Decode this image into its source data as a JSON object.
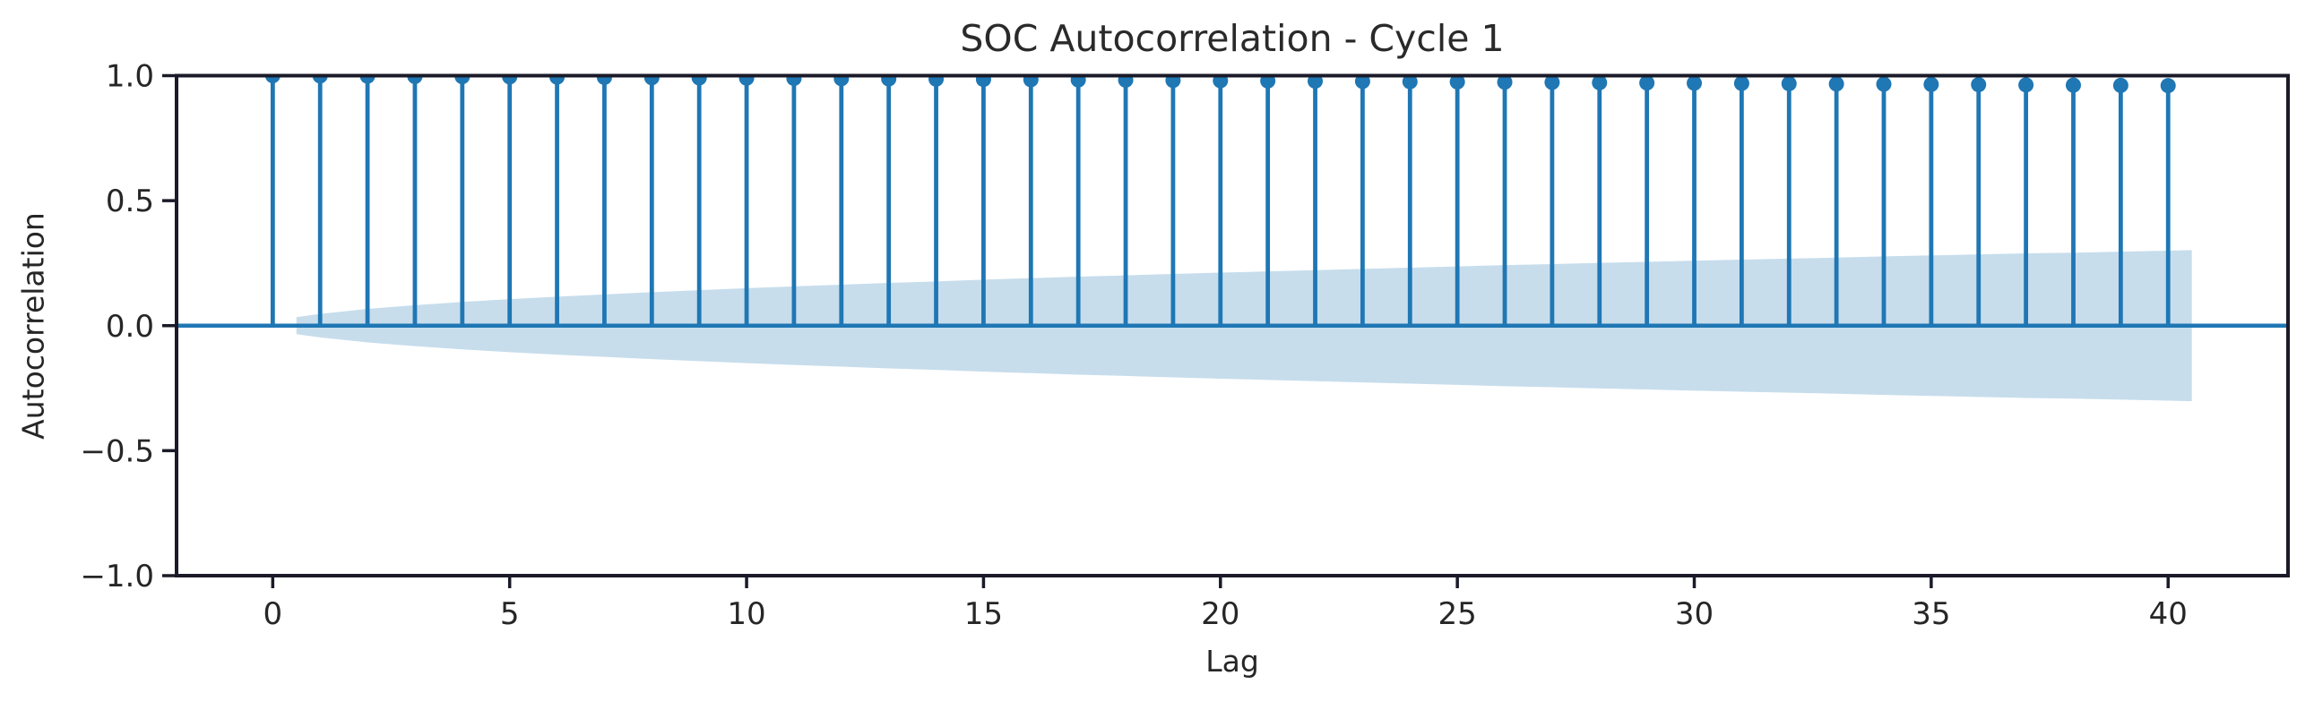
{
  "chart_data": {
    "type": "stem",
    "title": "SOC Autocorrelation - Cycle 1",
    "xlabel": "Lag",
    "ylabel": "Autocorrelation",
    "xlim": [
      -2.03,
      42.53
    ],
    "ylim": [
      -1.0,
      1.0
    ],
    "x_ticks": [
      0,
      5,
      10,
      15,
      20,
      25,
      30,
      35,
      40
    ],
    "x_tick_labels": [
      "0",
      "5",
      "10",
      "15",
      "20",
      "25",
      "30",
      "35",
      "40"
    ],
    "y_ticks": [
      1.0,
      0.5,
      0.0,
      -0.5,
      -1.0
    ],
    "y_tick_labels": [
      "1.0",
      "0.5",
      "0.0",
      "−0.5",
      "−1.0"
    ],
    "grid": false,
    "legend": null,
    "zero_line_y": 0.0,
    "lags": [
      0,
      1,
      2,
      3,
      4,
      5,
      6,
      7,
      8,
      9,
      10,
      11,
      12,
      13,
      14,
      15,
      16,
      17,
      18,
      19,
      20,
      21,
      22,
      23,
      24,
      25,
      26,
      27,
      28,
      29,
      30,
      31,
      32,
      33,
      34,
      35,
      36,
      37,
      38,
      39,
      40
    ],
    "acf": [
      1.0,
      0.999,
      0.998,
      0.997,
      0.996,
      0.995,
      0.994,
      0.993,
      0.992,
      0.991,
      0.99,
      0.989,
      0.988,
      0.987,
      0.986,
      0.985,
      0.984,
      0.983,
      0.982,
      0.981,
      0.98,
      0.979,
      0.978,
      0.977,
      0.976,
      0.975,
      0.974,
      0.973,
      0.972,
      0.971,
      0.97,
      0.969,
      0.968,
      0.967,
      0.966,
      0.965,
      0.964,
      0.963,
      0.962,
      0.961,
      0.96
    ],
    "confidence_band": {
      "centered_on": 0.0,
      "band_lags": [
        0.5,
        1,
        2,
        3,
        4,
        5,
        6,
        7,
        8,
        9,
        10,
        11,
        12,
        13,
        14,
        15,
        16,
        17,
        18,
        19,
        20,
        21,
        22,
        23,
        24,
        25,
        26,
        27,
        28,
        29,
        30,
        31,
        32,
        33,
        34,
        35,
        36,
        37,
        38,
        39,
        40,
        40.5
      ],
      "upper": [
        0.034,
        0.047,
        0.067,
        0.082,
        0.095,
        0.106,
        0.116,
        0.125,
        0.134,
        0.142,
        0.15,
        0.157,
        0.164,
        0.171,
        0.177,
        0.184,
        0.19,
        0.196,
        0.201,
        0.207,
        0.212,
        0.217,
        0.222,
        0.227,
        0.232,
        0.237,
        0.242,
        0.246,
        0.251,
        0.255,
        0.26,
        0.264,
        0.268,
        0.272,
        0.277,
        0.281,
        0.285,
        0.289,
        0.292,
        0.296,
        0.3,
        0.302
      ],
      "lower": [
        -0.034,
        -0.047,
        -0.067,
        -0.082,
        -0.095,
        -0.106,
        -0.116,
        -0.125,
        -0.134,
        -0.142,
        -0.15,
        -0.157,
        -0.164,
        -0.171,
        -0.177,
        -0.184,
        -0.19,
        -0.196,
        -0.201,
        -0.207,
        -0.212,
        -0.217,
        -0.222,
        -0.227,
        -0.232,
        -0.237,
        -0.242,
        -0.246,
        -0.251,
        -0.255,
        -0.26,
        -0.264,
        -0.268,
        -0.272,
        -0.277,
        -0.281,
        -0.285,
        -0.289,
        -0.292,
        -0.296,
        -0.3,
        -0.302
      ]
    },
    "colors": {
      "stem": "#1f77b4",
      "marker": "#1f77b4",
      "zero_line": "#1f77b4",
      "confidence_band": "#1f77b4",
      "confidence_band_opacity": 0.25,
      "spine": "#1a1a28",
      "tick_text": "#262626",
      "background": "#ffffff"
    }
  }
}
